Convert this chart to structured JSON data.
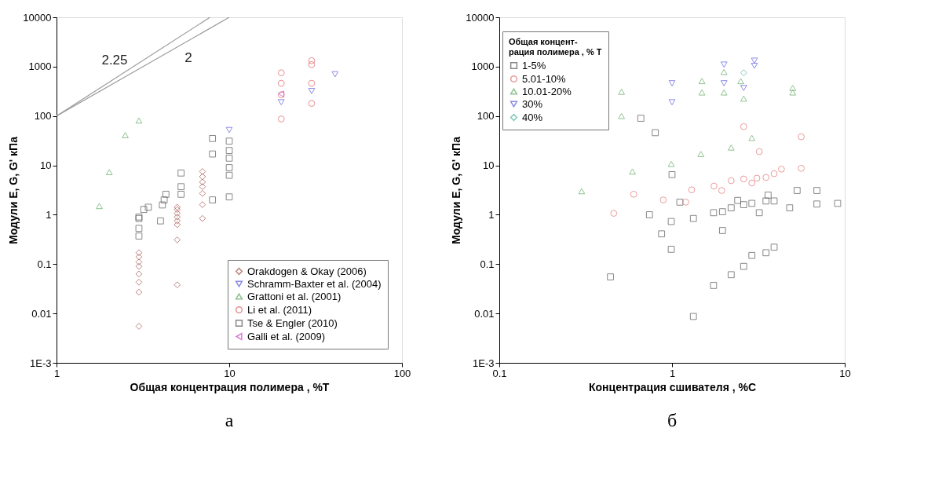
{
  "chart_data": [
    {
      "type": "scatter",
      "xlabel": "Общая концентрация полимера , %T",
      "ylabel": "Модули  E, G, G' кПа",
      "log": "xy",
      "grid": false,
      "legend": "bottom right",
      "xlim": [
        1,
        100
      ],
      "xticks": [
        1,
        10,
        100
      ],
      "ylim": [
        0.001,
        10000
      ],
      "yticks": [
        {
          "value": 0.001,
          "label": "1E-3"
        },
        0.01,
        0.1,
        1,
        10,
        100,
        1000,
        10000
      ],
      "annotations": [
        "а"
      ],
      "series": [
        {
          "name": "Orakdogen & Okay (2006)",
          "color": "#a0524a",
          "marker": "diamond",
          "x": [
            3,
            3,
            3,
            3,
            3,
            3,
            3,
            3,
            5,
            5,
            5,
            5,
            5,
            5,
            5,
            5,
            7,
            7,
            7,
            7,
            7,
            7,
            7
          ],
          "values": [
            0.17,
            0.14,
            0.11,
            0.09,
            0.063,
            0.043,
            0.027,
            0.0055,
            1.42,
            1.28,
            1.07,
            0.9,
            0.75,
            0.63,
            0.31,
            0.038,
            7.5,
            5.9,
            4.6,
            3.7,
            2.7,
            1.6,
            0.84
          ]
        },
        {
          "name": "Schramm-Baxter et al. (2004)",
          "color": "#5a5ae0",
          "marker": "triangle_down",
          "x": [
            10,
            20,
            30,
            41
          ],
          "values": [
            52,
            190,
            320,
            700
          ]
        },
        {
          "name": "Grattoni et al. (2001)",
          "color": "#5aa85a",
          "marker": "triangle",
          "x": [
            1.77,
            2.02,
            2.5,
            3.0
          ],
          "values": [
            1.5,
            7.3,
            41,
            81
          ]
        },
        {
          "name": "Li et al. (2011)",
          "color": "#e06060",
          "marker": "circle",
          "x": [
            20,
            20,
            20,
            20,
            30,
            30,
            30,
            30
          ],
          "values": [
            750,
            460,
            270,
            87,
            1320,
            1100,
            460,
            180
          ]
        },
        {
          "name": "Tse & Engler (2010)",
          "color": "#555555",
          "marker": "square",
          "x": [
            3,
            3,
            3,
            3,
            3.2,
            3.4,
            4.0,
            4.1,
            4.2,
            4.3,
            5.26,
            5.26,
            5.26,
            8,
            8,
            8,
            10,
            10,
            10,
            10,
            10,
            10
          ],
          "values": [
            0.9,
            0.84,
            0.53,
            0.37,
            1.28,
            1.42,
            0.75,
            1.58,
            2.0,
            2.6,
            7.0,
            3.7,
            2.6,
            2.0,
            17,
            35,
            31,
            20,
            14,
            9,
            6.3,
            2.3
          ]
        },
        {
          "name": "Galli et al. (2009)",
          "color": "#cc44cc",
          "marker": "triangle_left",
          "x": [
            20
          ],
          "values": [
            280
          ]
        },
        {
          "type": "line",
          "name": "2.25",
          "color": "#999999",
          "marker": "none",
          "line_style": "solid",
          "x": [
            1,
            7.74
          ],
          "values": [
            100,
            10000
          ]
        },
        {
          "type": "line",
          "name": "2",
          "color": "#999999",
          "marker": "none",
          "line_style": "solid",
          "x": [
            1,
            10
          ],
          "values": [
            100,
            10000
          ]
        }
      ]
    },
    {
      "type": "scatter",
      "xlabel": "Концентрация сшивателя , %С",
      "ylabel": "Модули  E, G, G' кПа",
      "log": "xy",
      "grid": false,
      "legend": "top left",
      "legend_title": "Общая концент-\nрация полимера , % T",
      "xlim": [
        0.1,
        10
      ],
      "xticks": [
        0.1,
        1,
        10
      ],
      "ylim": [
        0.001,
        10000
      ],
      "yticks": [
        {
          "value": 0.001,
          "label": "1E-3"
        },
        0.01,
        0.1,
        1,
        10,
        100,
        1000,
        10000
      ],
      "annotations": [
        "б"
      ],
      "series": [
        {
          "name": "1-5%",
          "color": "#555555",
          "marker": "square",
          "x": [
            0.44,
            0.74,
            0.87,
            0.99,
            0.99,
            1.11,
            1.33,
            1.33,
            1.74,
            1.74,
            1.96,
            1.96,
            2.2,
            2.2,
            2.4,
            2.6,
            2.6,
            2.9,
            2.9,
            3.2,
            3.5,
            3.5,
            3.6,
            3.9,
            3.9,
            4.8,
            5.3,
            6.9,
            6.9,
            9.1,
            0.66,
            0.8,
            1.0
          ],
          "values": [
            0.055,
            1.0,
            0.41,
            0.73,
            0.2,
            1.8,
            0.84,
            0.0087,
            1.1,
            0.037,
            1.15,
            0.48,
            1.38,
            0.061,
            1.95,
            0.09,
            1.6,
            1.7,
            0.15,
            1.1,
            1.9,
            0.17,
            2.5,
            1.9,
            0.22,
            1.38,
            3.1,
            3.1,
            1.65,
            1.7,
            90,
            46,
            6.5
          ]
        },
        {
          "name": "5.01-10%",
          "color": "#e07070",
          "marker": "circle",
          "x": [
            0.46,
            0.6,
            0.89,
            1.2,
            1.3,
            1.75,
            1.94,
            2.2,
            2.6,
            2.9,
            3.1,
            3.5,
            3.9,
            4.3,
            5.6,
            5.6,
            2.6,
            3.2
          ],
          "values": [
            1.07,
            2.6,
            2.0,
            1.8,
            3.2,
            3.8,
            3.1,
            4.9,
            5.3,
            4.4,
            5.5,
            5.7,
            6.8,
            8.4,
            8.7,
            38,
            61,
            19
          ]
        },
        {
          "name": "10.01-20%",
          "color": "#60a860",
          "marker": "triangle",
          "x": [
            0.3,
            0.51,
            0.51,
            0.59,
            0.99,
            1.47,
            1.49,
            1.49,
            2.0,
            2.0,
            2.2,
            2.5,
            2.6,
            2.9,
            5.0,
            5.0
          ],
          "values": [
            3.0,
            310,
            100,
            7.5,
            10.7,
            17,
            510,
            300,
            780,
            300,
            23,
            510,
            225,
            36,
            370,
            300
          ]
        },
        {
          "name": "30%",
          "color": "#5a5ae0",
          "marker": "triangle_down",
          "x": [
            1.0,
            1.0,
            2.0,
            2.0,
            2.6,
            3.0,
            3.0
          ],
          "values": [
            460,
            190,
            1100,
            460,
            370,
            1320,
            1040
          ]
        },
        {
          "name": "40%",
          "color": "#50b0a0",
          "marker": "diamond",
          "x": [
            2.6
          ],
          "values": [
            750
          ]
        }
      ]
    }
  ]
}
